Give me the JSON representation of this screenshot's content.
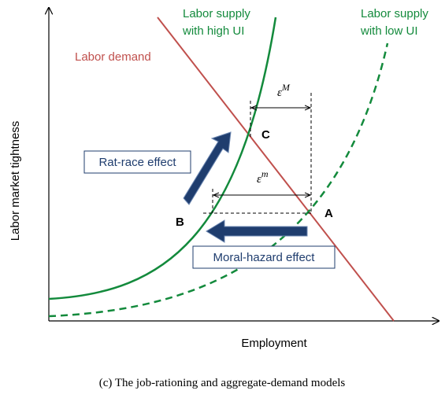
{
  "title_labels": {
    "labor_demand": "Labor demand",
    "supply_high": [
      "Labor supply",
      "with high UI"
    ],
    "supply_low": [
      "Labor supply",
      "with low UI"
    ]
  },
  "axes": {
    "x": "Employment",
    "y": "Labor market tightness"
  },
  "points": {
    "a": "A",
    "b": "B",
    "c": "C"
  },
  "gaps": {
    "upper": {
      "base": "ε",
      "sup": "M"
    },
    "lower": {
      "base": "ε",
      "sup": "m"
    }
  },
  "effects": {
    "rat_race": "Rat-race effect",
    "moral_hazard": "Moral-hazard effect"
  },
  "caption": "(c) The job-rationing and aggregate-demand models"
}
